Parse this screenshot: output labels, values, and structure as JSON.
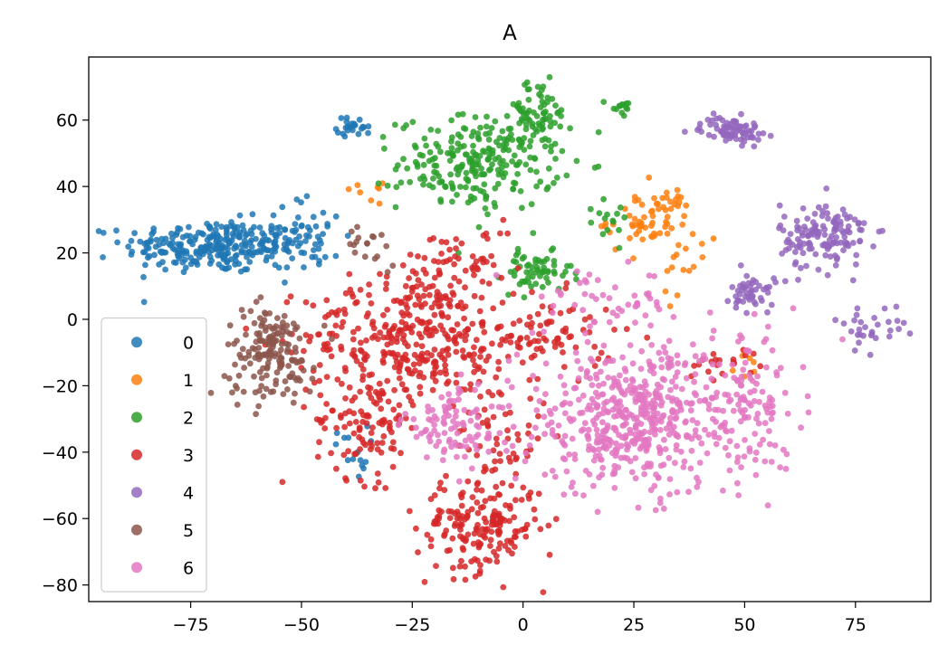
{
  "chart_data": {
    "type": "scatter",
    "title": "A",
    "xlabel": "",
    "ylabel": "",
    "xlim": [
      -98,
      92
    ],
    "ylim": [
      -85,
      79
    ],
    "xticks": [
      -75,
      -50,
      -25,
      0,
      25,
      50,
      75
    ],
    "yticks": [
      -80,
      -60,
      -40,
      -20,
      0,
      20,
      40,
      60
    ],
    "xtick_labels": [
      "−75",
      "−50",
      "−25",
      "0",
      "25",
      "50",
      "75"
    ],
    "ytick_labels": [
      "−80",
      "−60",
      "−40",
      "−20",
      "0",
      "20",
      "40",
      "60"
    ],
    "grid": false,
    "legend_position": "lower-left",
    "series": [
      {
        "name": "0",
        "color": "#1f77b4",
        "clusters": [
          {
            "cx": -70,
            "cy": 22,
            "sx": 10,
            "sy": 4,
            "n": 260
          },
          {
            "cx": -50,
            "cy": 25,
            "sx": 5,
            "sy": 6,
            "n": 60
          },
          {
            "cx": -38,
            "cy": 58,
            "sx": 2,
            "sy": 1.5,
            "n": 25
          },
          {
            "cx": -39,
            "cy": -40,
            "sx": 2,
            "sy": 4,
            "n": 14
          }
        ]
      },
      {
        "name": "1",
        "color": "#ff7f0e",
        "clusters": [
          {
            "cx": 29,
            "cy": 30,
            "sx": 5,
            "sy": 5,
            "n": 70
          },
          {
            "cx": 36,
            "cy": 14,
            "sx": 3,
            "sy": 4,
            "n": 12
          },
          {
            "cx": -36,
            "cy": 38,
            "sx": 2,
            "sy": 1.5,
            "n": 8
          },
          {
            "cx": 52,
            "cy": -14,
            "sx": 2,
            "sy": 2,
            "n": 6
          }
        ]
      },
      {
        "name": "2",
        "color": "#2ca02c",
        "clusters": [
          {
            "cx": -10,
            "cy": 47,
            "sx": 9,
            "sy": 7,
            "n": 240
          },
          {
            "cx": 3,
            "cy": 62,
            "sx": 4,
            "sy": 5,
            "n": 70
          },
          {
            "cx": 3,
            "cy": 14,
            "sx": 4,
            "sy": 3,
            "n": 60
          },
          {
            "cx": 22,
            "cy": 64,
            "sx": 1.5,
            "sy": 1.5,
            "n": 14
          },
          {
            "cx": 18,
            "cy": 32,
            "sx": 4,
            "sy": 4,
            "n": 15
          }
        ]
      },
      {
        "name": "3",
        "color": "#d62728",
        "clusters": [
          {
            "cx": -25,
            "cy": -5,
            "sx": 12,
            "sy": 9,
            "n": 320
          },
          {
            "cx": -35,
            "cy": -30,
            "sx": 6,
            "sy": 9,
            "n": 120
          },
          {
            "cx": -10,
            "cy": -62,
            "sx": 7,
            "sy": 7,
            "n": 180
          },
          {
            "cx": 5,
            "cy": -5,
            "sx": 8,
            "sy": 6,
            "n": 80
          },
          {
            "cx": -15,
            "cy": 15,
            "sx": 7,
            "sy": 6,
            "n": 70
          },
          {
            "cx": -5,
            "cy": -35,
            "sx": 5,
            "sy": 10,
            "n": 60
          },
          {
            "cx": 45,
            "cy": -12,
            "sx": 4,
            "sy": 3,
            "n": 20
          }
        ]
      },
      {
        "name": "4",
        "color": "#9467bd",
        "clusters": [
          {
            "cx": 47,
            "cy": 57,
            "sx": 3.5,
            "sy": 2,
            "n": 80
          },
          {
            "cx": 68,
            "cy": 25,
            "sx": 5,
            "sy": 5,
            "n": 140
          },
          {
            "cx": 52,
            "cy": 8,
            "sx": 2.5,
            "sy": 3,
            "n": 50
          },
          {
            "cx": 78,
            "cy": -2,
            "sx": 4,
            "sy": 3,
            "n": 30
          }
        ]
      },
      {
        "name": "5",
        "color": "#8c564b",
        "clusters": [
          {
            "cx": -57,
            "cy": -10,
            "sx": 5,
            "sy": 7,
            "n": 160
          },
          {
            "cx": -34,
            "cy": 22,
            "sx": 3,
            "sy": 3,
            "n": 18
          }
        ]
      },
      {
        "name": "6",
        "color": "#e377c2",
        "clusters": [
          {
            "cx": 25,
            "cy": -30,
            "sx": 13,
            "sy": 11,
            "n": 520
          },
          {
            "cx": -15,
            "cy": -32,
            "sx": 6,
            "sy": 6,
            "n": 90
          },
          {
            "cx": 50,
            "cy": -25,
            "sx": 6,
            "sy": 10,
            "n": 100
          },
          {
            "cx": 18,
            "cy": 5,
            "sx": 8,
            "sy": 5,
            "n": 50
          }
        ]
      }
    ]
  }
}
